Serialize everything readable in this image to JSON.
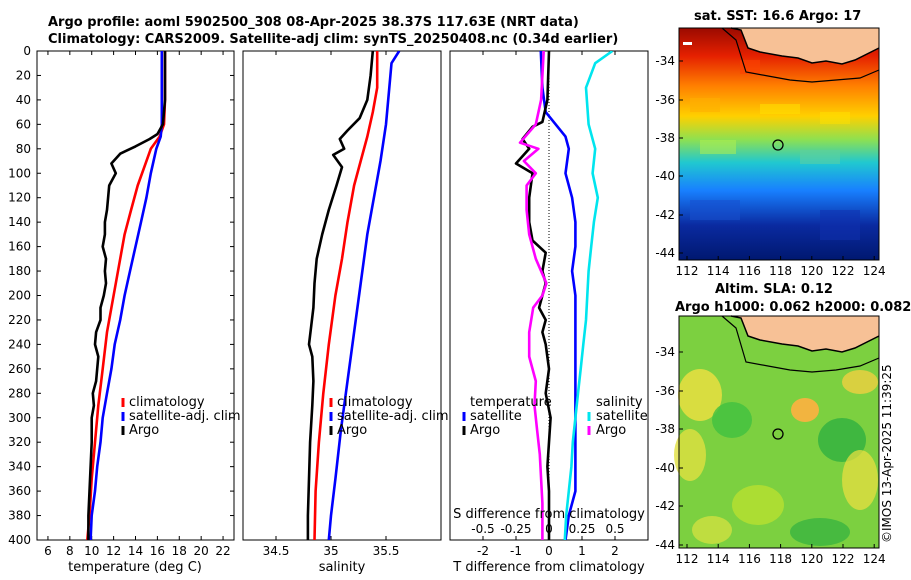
{
  "header": {
    "line1": "Argo profile: aoml 5902500_308 08-Apr-2025 38.37S 117.63E (NRT data)",
    "line2": "Climatology: CARS2009. Satellite-adj clim: synTS_20250408.nc (0.34d earlier)"
  },
  "maps": {
    "sst_title": "sat. SST: 16.6 Argo: 17",
    "sla_title1": "Altim. SLA: 0.12",
    "sla_title2": "Argo h1000: 0.062 h2000: 0.082",
    "credit": "©IMOS 13-Apr-2025 11:39:25",
    "lat_ticks": [
      "-34",
      "-36",
      "-38",
      "-40",
      "-42",
      "-44"
    ],
    "lon_ticks": [
      "112",
      "114",
      "116",
      "118",
      "120",
      "122",
      "124"
    ]
  },
  "colors": {
    "climatology": "#ff0000",
    "satellite": "#0000ff",
    "argo": "#000000",
    "sat_salinity": "#00e5ee",
    "argo_salinity": "#ff00ff",
    "land": "#f7c196"
  },
  "chart_data": [
    {
      "type": "line",
      "name": "temperature-profile",
      "xlabel": "temperature (deg C)",
      "ylabel": "",
      "xlim": [
        5,
        23
      ],
      "ylim": [
        400,
        0
      ],
      "xticks": [
        6,
        8,
        10,
        12,
        14,
        16,
        18,
        20,
        22
      ],
      "yticks": [
        0,
        20,
        40,
        60,
        80,
        100,
        120,
        140,
        160,
        180,
        200,
        220,
        240,
        260,
        280,
        300,
        320,
        340,
        360,
        380,
        400
      ],
      "legend": [
        "climatology",
        "satellite-adj. clim",
        "Argo"
      ],
      "series": [
        {
          "name": "climatology",
          "color": "#ff0000",
          "points": [
            [
              16.7,
              0
            ],
            [
              16.7,
              40
            ],
            [
              16.6,
              60
            ],
            [
              16.2,
              70
            ],
            [
              15.4,
              80
            ],
            [
              14.8,
              95
            ],
            [
              14.2,
              110
            ],
            [
              13.6,
              130
            ],
            [
              13.0,
              150
            ],
            [
              12.6,
              170
            ],
            [
              12.2,
              190
            ],
            [
              11.8,
              210
            ],
            [
              11.4,
              230
            ],
            [
              11.0,
              260
            ],
            [
              10.6,
              290
            ],
            [
              10.3,
              320
            ],
            [
              10.0,
              350
            ],
            [
              9.8,
              380
            ],
            [
              9.6,
              400
            ]
          ]
        },
        {
          "name": "satellite-adj. clim",
          "color": "#0000ff",
          "points": [
            [
              16.4,
              0
            ],
            [
              16.4,
              40
            ],
            [
              16.4,
              60
            ],
            [
              16.3,
              70
            ],
            [
              15.9,
              80
            ],
            [
              15.4,
              100
            ],
            [
              15.0,
              120
            ],
            [
              14.5,
              140
            ],
            [
              14.0,
              160
            ],
            [
              13.5,
              180
            ],
            [
              13.0,
              200
            ],
            [
              12.6,
              220
            ],
            [
              12.1,
              240
            ],
            [
              11.8,
              260
            ],
            [
              11.4,
              280
            ],
            [
              11.0,
              300
            ],
            [
              10.8,
              320
            ],
            [
              10.5,
              340
            ],
            [
              10.3,
              360
            ],
            [
              10.0,
              380
            ],
            [
              9.9,
              400
            ]
          ]
        },
        {
          "name": "Argo",
          "color": "#000000",
          "points": [
            [
              16.7,
              0
            ],
            [
              16.7,
              40
            ],
            [
              16.5,
              60
            ],
            [
              16.0,
              68
            ],
            [
              15.3,
              72
            ],
            [
              14.0,
              78
            ],
            [
              12.6,
              84
            ],
            [
              11.8,
              92
            ],
            [
              12.2,
              100
            ],
            [
              11.6,
              110
            ],
            [
              11.5,
              120
            ],
            [
              11.4,
              130
            ],
            [
              11.2,
              140
            ],
            [
              11.2,
              150
            ],
            [
              11.0,
              160
            ],
            [
              11.3,
              170
            ],
            [
              11.2,
              180
            ],
            [
              11.3,
              190
            ],
            [
              11.1,
              200
            ],
            [
              10.8,
              210
            ],
            [
              10.8,
              220
            ],
            [
              10.4,
              230
            ],
            [
              10.3,
              240
            ],
            [
              10.6,
              250
            ],
            [
              10.5,
              260
            ],
            [
              10.4,
              270
            ],
            [
              10.1,
              280
            ],
            [
              10.2,
              290
            ],
            [
              10.0,
              300
            ],
            [
              10.0,
              320
            ],
            [
              9.9,
              340
            ],
            [
              9.8,
              360
            ],
            [
              9.7,
              380
            ],
            [
              9.7,
              400
            ]
          ]
        }
      ]
    },
    {
      "type": "line",
      "name": "salinity-profile",
      "xlabel": "salinity",
      "xlim": [
        34.2,
        36.0
      ],
      "ylim": [
        400,
        0
      ],
      "xticks": [
        34.5,
        35,
        35.5
      ],
      "xticklabels": [
        "34.5",
        "35",
        "35.5"
      ],
      "legend": [
        "climatology",
        "satellite-adj. clim",
        "Argo"
      ],
      "series": [
        {
          "name": "climatology",
          "color": "#ff0000",
          "points": [
            [
              35.42,
              0
            ],
            [
              35.42,
              30
            ],
            [
              35.38,
              50
            ],
            [
              35.33,
              70
            ],
            [
              35.27,
              90
            ],
            [
              35.21,
              110
            ],
            [
              35.15,
              140
            ],
            [
              35.1,
              170
            ],
            [
              35.04,
              200
            ],
            [
              34.98,
              240
            ],
            [
              34.93,
              280
            ],
            [
              34.89,
              320
            ],
            [
              34.86,
              360
            ],
            [
              34.85,
              400
            ]
          ]
        },
        {
          "name": "satellite-adj. clim",
          "color": "#0000ff",
          "points": [
            [
              35.62,
              0
            ],
            [
              35.55,
              10
            ],
            [
              35.53,
              30
            ],
            [
              35.5,
              60
            ],
            [
              35.45,
              90
            ],
            [
              35.39,
              120
            ],
            [
              35.33,
              150
            ],
            [
              35.27,
              190
            ],
            [
              35.21,
              230
            ],
            [
              35.15,
              270
            ],
            [
              35.09,
              310
            ],
            [
              35.04,
              350
            ],
            [
              35.0,
              380
            ],
            [
              34.98,
              400
            ]
          ]
        },
        {
          "name": "Argo",
          "color": "#000000",
          "points": [
            [
              35.38,
              0
            ],
            [
              35.36,
              20
            ],
            [
              35.33,
              40
            ],
            [
              35.26,
              55
            ],
            [
              35.15,
              65
            ],
            [
              35.08,
              72
            ],
            [
              35.12,
              80
            ],
            [
              35.02,
              85
            ],
            [
              35.1,
              95
            ],
            [
              35.05,
              110
            ],
            [
              34.98,
              130
            ],
            [
              34.92,
              150
            ],
            [
              34.87,
              170
            ],
            [
              34.85,
              190
            ],
            [
              34.84,
              210
            ],
            [
              34.82,
              225
            ],
            [
              34.8,
              240
            ],
            [
              34.83,
              250
            ],
            [
              34.84,
              270
            ],
            [
              34.83,
              290
            ],
            [
              34.81,
              320
            ],
            [
              34.8,
              350
            ],
            [
              34.79,
              380
            ],
            [
              34.79,
              400
            ]
          ]
        }
      ]
    },
    {
      "type": "line",
      "name": "difference-profile",
      "xlabel": "T difference from climatology",
      "xlabel2": "S difference from climatology",
      "xlim": [
        -3,
        3
      ],
      "ylim": [
        400,
        0
      ],
      "xticks": [
        -2,
        -1,
        0,
        1,
        2
      ],
      "xticks_s": [
        "-0.5",
        "-0.25",
        "0",
        "0.25",
        "0.5"
      ],
      "legend_temperature_title": "temperature",
      "legend_salinity_title": "salinity",
      "legend_temperature": [
        "satellite",
        "Argo"
      ],
      "legend_salinity": [
        "satellite",
        "Argo"
      ],
      "series": [
        {
          "name": "T satellite",
          "color": "#0000ff",
          "points": [
            [
              -0.25,
              0
            ],
            [
              -0.2,
              30
            ],
            [
              -0.1,
              50
            ],
            [
              0.2,
              60
            ],
            [
              0.5,
              70
            ],
            [
              0.6,
              80
            ],
            [
              0.5,
              100
            ],
            [
              0.7,
              120
            ],
            [
              0.8,
              140
            ],
            [
              0.8,
              160
            ],
            [
              0.7,
              180
            ],
            [
              0.8,
              200
            ],
            [
              0.8,
              220
            ],
            [
              0.8,
              240
            ],
            [
              0.8,
              260
            ],
            [
              0.8,
              280
            ],
            [
              0.8,
              300
            ],
            [
              0.8,
              320
            ],
            [
              0.8,
              340
            ],
            [
              0.8,
              360
            ],
            [
              0.6,
              380
            ],
            [
              0.5,
              400
            ]
          ]
        },
        {
          "name": "T Argo",
          "color": "#000000",
          "points": [
            [
              0,
              0
            ],
            [
              -0.05,
              40
            ],
            [
              -0.2,
              58
            ],
            [
              -0.5,
              62
            ],
            [
              -0.8,
              72
            ],
            [
              -0.6,
              80
            ],
            [
              -1.0,
              92
            ],
            [
              -0.5,
              100
            ],
            [
              -0.6,
              120
            ],
            [
              -0.6,
              140
            ],
            [
              -0.5,
              155
            ],
            [
              -0.1,
              165
            ],
            [
              -0.2,
              180
            ],
            [
              -0.1,
              190
            ],
            [
              -0.2,
              200
            ],
            [
              -0.3,
              210
            ],
            [
              -0.1,
              220
            ],
            [
              -0.2,
              230
            ],
            [
              -0.1,
              240
            ],
            [
              0,
              260
            ],
            [
              -0.1,
              280
            ],
            [
              0.05,
              300
            ],
            [
              0,
              320
            ],
            [
              -0.05,
              340
            ],
            [
              0,
              360
            ],
            [
              0,
              380
            ],
            [
              0,
              400
            ]
          ]
        },
        {
          "name": "S satellite",
          "color": "#00e5ee",
          "points": [
            [
              0.48,
              0
            ],
            [
              0.35,
              10
            ],
            [
              0.28,
              30
            ],
            [
              0.3,
              60
            ],
            [
              0.35,
              80
            ],
            [
              0.33,
              100
            ],
            [
              0.37,
              120
            ],
            [
              0.34,
              140
            ],
            [
              0.32,
              160
            ],
            [
              0.3,
              180
            ],
            [
              0.29,
              200
            ],
            [
              0.28,
              220
            ],
            [
              0.26,
              240
            ],
            [
              0.24,
              260
            ],
            [
              0.22,
              280
            ],
            [
              0.2,
              300
            ],
            [
              0.18,
              320
            ],
            [
              0.17,
              340
            ],
            [
              0.15,
              360
            ],
            [
              0.13,
              380
            ],
            [
              0.12,
              400
            ]
          ]
        },
        {
          "name": "S Argo",
          "color": "#ff00ff",
          "points": [
            [
              -0.04,
              0
            ],
            [
              -0.06,
              40
            ],
            [
              -0.1,
              60
            ],
            [
              -0.22,
              75
            ],
            [
              -0.08,
              80
            ],
            [
              -0.19,
              90
            ],
            [
              -0.1,
              100
            ],
            [
              -0.17,
              110
            ],
            [
              -0.17,
              130
            ],
            [
              -0.15,
              150
            ],
            [
              -0.1,
              170
            ],
            [
              -0.02,
              190
            ],
            [
              -0.05,
              200
            ],
            [
              -0.12,
              210
            ],
            [
              -0.15,
              230
            ],
            [
              -0.15,
              250
            ],
            [
              -0.1,
              270
            ],
            [
              -0.11,
              290
            ],
            [
              -0.09,
              310
            ],
            [
              -0.07,
              330
            ],
            [
              -0.06,
              350
            ],
            [
              -0.05,
              370
            ],
            [
              -0.05,
              400
            ]
          ]
        }
      ]
    }
  ]
}
